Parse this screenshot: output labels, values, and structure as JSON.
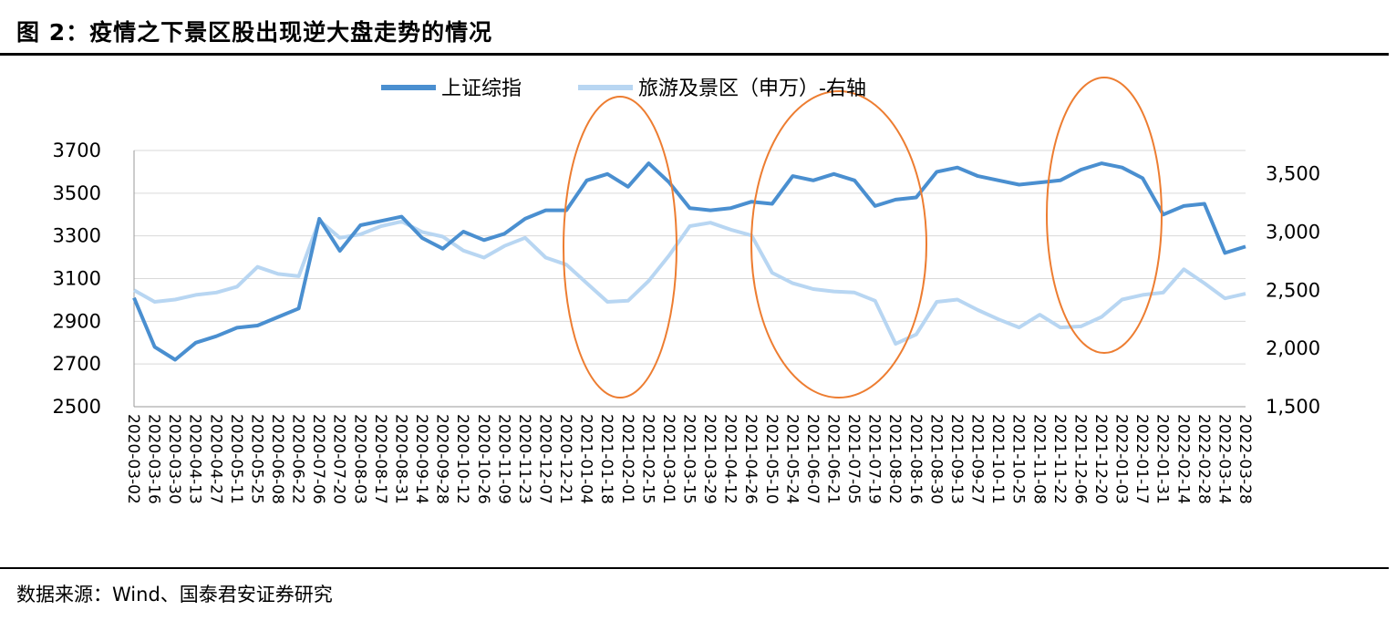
{
  "figure": {
    "title": "图 2：疫情之下景区股出现逆大盘走势的情况",
    "source": "数据来源：Wind、国泰君安证券研究"
  },
  "chart_data": {
    "type": "line",
    "y_left": {
      "min": 2500,
      "max": 3700,
      "ticks": [
        "2500",
        "2700",
        "2900",
        "3100",
        "3300",
        "3500",
        "3700"
      ]
    },
    "y_right": {
      "min": 1500,
      "max": 3700,
      "ticks": [
        "1,500",
        "2,000",
        "2,500",
        "3,000",
        "3,500"
      ]
    },
    "x_ticks": [
      "2020-03-02",
      "2020-03-16",
      "2020-03-30",
      "2020-04-13",
      "2020-04-27",
      "2020-05-11",
      "2020-05-25",
      "2020-06-08",
      "2020-06-22",
      "2020-07-06",
      "2020-07-20",
      "2020-08-03",
      "2020-08-17",
      "2020-08-31",
      "2020-09-14",
      "2020-09-28",
      "2020-10-12",
      "2020-10-26",
      "2020-11-09",
      "2020-11-23",
      "2020-12-07",
      "2020-12-21",
      "2021-01-04",
      "2021-01-18",
      "2021-02-01",
      "2021-02-15",
      "2021-03-01",
      "2021-03-15",
      "2021-03-29",
      "2021-04-12",
      "2021-04-26",
      "2021-05-10",
      "2021-05-24",
      "2021-06-07",
      "2021-06-21",
      "2021-07-05",
      "2021-07-19",
      "2021-08-02",
      "2021-08-16",
      "2021-08-30",
      "2021-09-13",
      "2021-09-27",
      "2021-10-11",
      "2021-10-25",
      "2021-11-08",
      "2021-11-22",
      "2021-12-06",
      "2021-12-20",
      "2022-01-03",
      "2022-01-17",
      "2022-01-31",
      "2022-02-14",
      "2022-02-28",
      "2022-03-14",
      "2022-03-28"
    ],
    "legend": "top-center",
    "grid": "horizontal",
    "series": [
      {
        "name": "上证综指",
        "axis": "left",
        "color": "#4a8fd0",
        "values": [
          3010,
          2780,
          2720,
          2800,
          2830,
          2870,
          2880,
          2920,
          2960,
          3380,
          3230,
          3350,
          3370,
          3390,
          3290,
          3240,
          3320,
          3280,
          3310,
          3380,
          3420,
          3420,
          3560,
          3590,
          3530,
          3640,
          3550,
          3430,
          3420,
          3430,
          3460,
          3450,
          3580,
          3560,
          3590,
          3560,
          3440,
          3470,
          3480,
          3600,
          3620,
          3580,
          3560,
          3540,
          3550,
          3560,
          3610,
          3640,
          3620,
          3570,
          3400,
          3440,
          3450,
          3220,
          3250
        ]
      },
      {
        "name": "旅游及景区（申万）-右轴",
        "axis": "right",
        "color": "#b8d6f2",
        "values": [
          2500,
          2400,
          2420,
          2460,
          2480,
          2530,
          2700,
          2640,
          2620,
          3100,
          2950,
          2980,
          3050,
          3090,
          3000,
          2960,
          2840,
          2780,
          2880,
          2950,
          2780,
          2720,
          2560,
          2400,
          2410,
          2580,
          2800,
          3050,
          3080,
          3020,
          2970,
          2650,
          2560,
          2510,
          2490,
          2480,
          2410,
          2040,
          2120,
          2400,
          2420,
          2330,
          2250,
          2180,
          2290,
          2180,
          2190,
          2270,
          2420,
          2460,
          2480,
          2680,
          2560,
          2430,
          2470
        ]
      }
    ],
    "annotations": [
      "ellipse around 2021-01-18 to 2021-02-15",
      "ellipse around 2021-05-10 to 2021-08-02",
      "ellipse around 2021-11-22 to 2022-01-17"
    ]
  }
}
